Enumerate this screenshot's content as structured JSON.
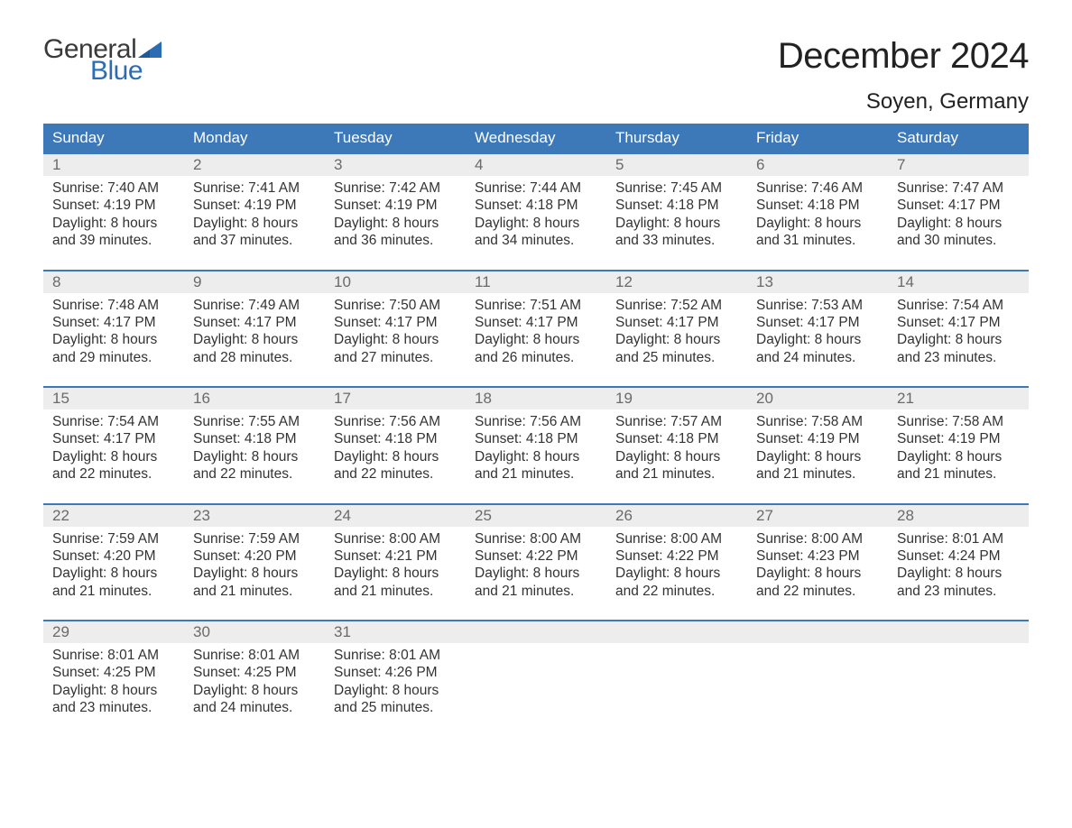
{
  "logo": {
    "word1": "General",
    "word2": "Blue",
    "flag_color": "#2a6db3",
    "text_dark": "#3a3a3a"
  },
  "title": "December 2024",
  "location": "Soyen, Germany",
  "colors": {
    "header_bg": "#3d78b8",
    "header_text": "#ffffff",
    "week_border": "#3d78b8",
    "daynum_bg": "#ededed",
    "daynum_text": "#6a6a6a",
    "body_text": "#333333",
    "background": "#ffffff"
  },
  "day_headers": [
    "Sunday",
    "Monday",
    "Tuesday",
    "Wednesday",
    "Thursday",
    "Friday",
    "Saturday"
  ],
  "weeks": [
    [
      {
        "n": "1",
        "sunrise": "7:40 AM",
        "sunset": "4:19 PM",
        "daylight": "8 hours and 39 minutes."
      },
      {
        "n": "2",
        "sunrise": "7:41 AM",
        "sunset": "4:19 PM",
        "daylight": "8 hours and 37 minutes."
      },
      {
        "n": "3",
        "sunrise": "7:42 AM",
        "sunset": "4:19 PM",
        "daylight": "8 hours and 36 minutes."
      },
      {
        "n": "4",
        "sunrise": "7:44 AM",
        "sunset": "4:18 PM",
        "daylight": "8 hours and 34 minutes."
      },
      {
        "n": "5",
        "sunrise": "7:45 AM",
        "sunset": "4:18 PM",
        "daylight": "8 hours and 33 minutes."
      },
      {
        "n": "6",
        "sunrise": "7:46 AM",
        "sunset": "4:18 PM",
        "daylight": "8 hours and 31 minutes."
      },
      {
        "n": "7",
        "sunrise": "7:47 AM",
        "sunset": "4:17 PM",
        "daylight": "8 hours and 30 minutes."
      }
    ],
    [
      {
        "n": "8",
        "sunrise": "7:48 AM",
        "sunset": "4:17 PM",
        "daylight": "8 hours and 29 minutes."
      },
      {
        "n": "9",
        "sunrise": "7:49 AM",
        "sunset": "4:17 PM",
        "daylight": "8 hours and 28 minutes."
      },
      {
        "n": "10",
        "sunrise": "7:50 AM",
        "sunset": "4:17 PM",
        "daylight": "8 hours and 27 minutes."
      },
      {
        "n": "11",
        "sunrise": "7:51 AM",
        "sunset": "4:17 PM",
        "daylight": "8 hours and 26 minutes."
      },
      {
        "n": "12",
        "sunrise": "7:52 AM",
        "sunset": "4:17 PM",
        "daylight": "8 hours and 25 minutes."
      },
      {
        "n": "13",
        "sunrise": "7:53 AM",
        "sunset": "4:17 PM",
        "daylight": "8 hours and 24 minutes."
      },
      {
        "n": "14",
        "sunrise": "7:54 AM",
        "sunset": "4:17 PM",
        "daylight": "8 hours and 23 minutes."
      }
    ],
    [
      {
        "n": "15",
        "sunrise": "7:54 AM",
        "sunset": "4:17 PM",
        "daylight": "8 hours and 22 minutes."
      },
      {
        "n": "16",
        "sunrise": "7:55 AM",
        "sunset": "4:18 PM",
        "daylight": "8 hours and 22 minutes."
      },
      {
        "n": "17",
        "sunrise": "7:56 AM",
        "sunset": "4:18 PM",
        "daylight": "8 hours and 22 minutes."
      },
      {
        "n": "18",
        "sunrise": "7:56 AM",
        "sunset": "4:18 PM",
        "daylight": "8 hours and 21 minutes."
      },
      {
        "n": "19",
        "sunrise": "7:57 AM",
        "sunset": "4:18 PM",
        "daylight": "8 hours and 21 minutes."
      },
      {
        "n": "20",
        "sunrise": "7:58 AM",
        "sunset": "4:19 PM",
        "daylight": "8 hours and 21 minutes."
      },
      {
        "n": "21",
        "sunrise": "7:58 AM",
        "sunset": "4:19 PM",
        "daylight": "8 hours and 21 minutes."
      }
    ],
    [
      {
        "n": "22",
        "sunrise": "7:59 AM",
        "sunset": "4:20 PM",
        "daylight": "8 hours and 21 minutes."
      },
      {
        "n": "23",
        "sunrise": "7:59 AM",
        "sunset": "4:20 PM",
        "daylight": "8 hours and 21 minutes."
      },
      {
        "n": "24",
        "sunrise": "8:00 AM",
        "sunset": "4:21 PM",
        "daylight": "8 hours and 21 minutes."
      },
      {
        "n": "25",
        "sunrise": "8:00 AM",
        "sunset": "4:22 PM",
        "daylight": "8 hours and 21 minutes."
      },
      {
        "n": "26",
        "sunrise": "8:00 AM",
        "sunset": "4:22 PM",
        "daylight": "8 hours and 22 minutes."
      },
      {
        "n": "27",
        "sunrise": "8:00 AM",
        "sunset": "4:23 PM",
        "daylight": "8 hours and 22 minutes."
      },
      {
        "n": "28",
        "sunrise": "8:01 AM",
        "sunset": "4:24 PM",
        "daylight": "8 hours and 23 minutes."
      }
    ],
    [
      {
        "n": "29",
        "sunrise": "8:01 AM",
        "sunset": "4:25 PM",
        "daylight": "8 hours and 23 minutes."
      },
      {
        "n": "30",
        "sunrise": "8:01 AM",
        "sunset": "4:25 PM",
        "daylight": "8 hours and 24 minutes."
      },
      {
        "n": "31",
        "sunrise": "8:01 AM",
        "sunset": "4:26 PM",
        "daylight": "8 hours and 25 minutes."
      },
      {
        "empty": true
      },
      {
        "empty": true
      },
      {
        "empty": true
      },
      {
        "empty": true
      }
    ]
  ],
  "labels": {
    "sunrise": "Sunrise: ",
    "sunset": "Sunset: ",
    "daylight": "Daylight: "
  }
}
